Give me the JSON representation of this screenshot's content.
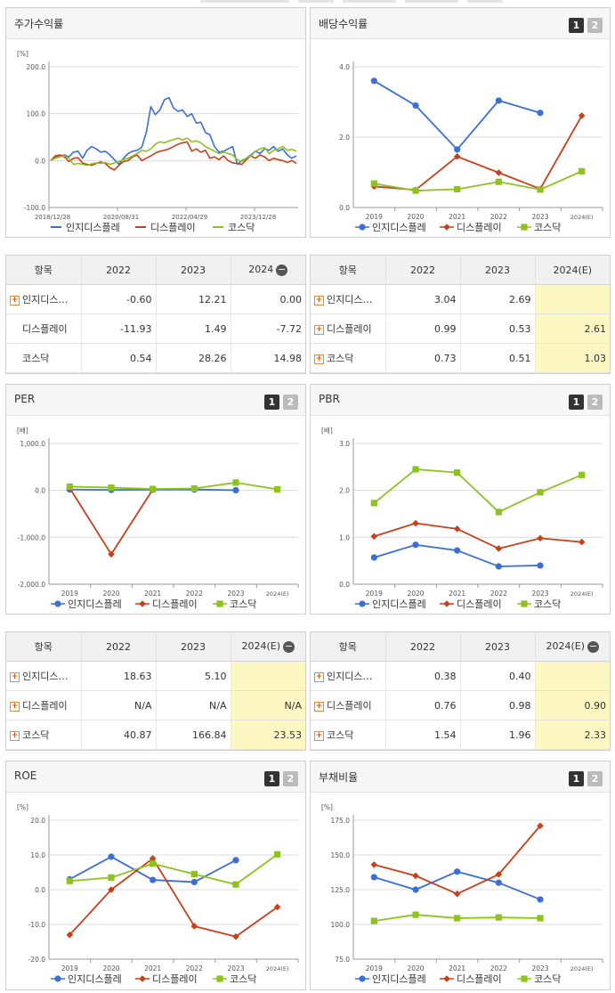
{
  "colors": {
    "blue": "#3a6fd8",
    "red": "#c8401a",
    "green": "#8dc21f",
    "grid": "#dcdcdc",
    "axis": "#999999"
  },
  "legend_names": [
    "인지디스플레",
    "디스플레이",
    "코스닥"
  ],
  "panels": [
    {
      "key": "stock",
      "title": "주가수익률",
      "buttons": [],
      "chart_data": {
        "type": "line",
        "unit": "[%]",
        "ylim": [
          -100,
          200
        ],
        "yticks": [
          "200.0",
          "100.0",
          "0.0",
          "-100.0"
        ],
        "ytick_values": [
          200,
          100,
          0,
          -100
        ],
        "x_tick_labels": [
          "2018/12/28",
          "2020/08/31",
          "2022/04/29",
          "2023/12/28"
        ],
        "x_tick_positions": [
          0,
          0.275,
          0.55,
          0.825
        ],
        "series": [
          {
            "name": "인지디스플레",
            "color": "#3a6fd8",
            "values": [
              0,
              8,
              10,
              12,
              8,
              18,
              20,
              5,
              22,
              30,
              25,
              18,
              20,
              12,
              2,
              -8,
              5,
              15,
              20,
              22,
              28,
              60,
              115,
              98,
              108,
              130,
              134,
              112,
              105,
              108,
              94,
              100,
              80,
              82,
              60,
              55,
              30,
              18,
              20,
              25,
              30,
              -8,
              0,
              5,
              12,
              20,
              15,
              25,
              22,
              30,
              20,
              25,
              12,
              5,
              10
            ]
          },
          {
            "name": "디스플레이",
            "color": "#c8401a",
            "values": [
              0,
              10,
              12,
              8,
              -2,
              5,
              6,
              -5,
              -8,
              -10,
              -6,
              -3,
              -6,
              -15,
              -20,
              -10,
              -2,
              0,
              8,
              12,
              0,
              5,
              10,
              16,
              20,
              22,
              25,
              30,
              35,
              38,
              40,
              20,
              25,
              18,
              22,
              5,
              8,
              2,
              10,
              0,
              -5,
              -6,
              -8,
              2,
              10,
              5,
              12,
              8,
              0,
              5,
              2,
              0,
              -4,
              0,
              -6
            ]
          },
          {
            "name": "코스닥",
            "color": "#8dc21f",
            "values": [
              0,
              5,
              8,
              10,
              5,
              -8,
              -6,
              -8,
              -10,
              -7,
              -5,
              -6,
              -4,
              -8,
              -5,
              -2,
              2,
              5,
              10,
              15,
              22,
              20,
              25,
              35,
              40,
              38,
              42,
              45,
              48,
              44,
              48,
              40,
              42,
              38,
              30,
              25,
              20,
              15,
              18,
              15,
              12,
              2,
              -2,
              5,
              10,
              20,
              25,
              28,
              15,
              22,
              25,
              30,
              22,
              24,
              20
            ]
          }
        ]
      },
      "table": {
        "headers": [
          "항목",
          "2022",
          "2023",
          "2024"
        ],
        "last_header_minus": true,
        "rows": [
          {
            "name": "인지디스…",
            "plus": true,
            "cells": [
              "-0.60",
              "12.21",
              "0.00"
            ]
          },
          {
            "name": "디스플레이",
            "plus": false,
            "cells": [
              "-11.93",
              "1.49",
              "-7.72"
            ]
          },
          {
            "name": "코스닥",
            "plus": false,
            "cells": [
              "0.54",
              "28.26",
              "14.98"
            ]
          }
        ],
        "highlight_last": false
      }
    },
    {
      "key": "dividend",
      "title": "배당수익률",
      "buttons": [
        "1",
        "2"
      ],
      "chart_data": {
        "type": "line",
        "unit": "",
        "ylim": [
          0,
          4
        ],
        "yticks": [
          "4.0",
          "2.0",
          "0.0"
        ],
        "ytick_values": [
          4,
          2,
          0
        ],
        "categories": [
          "2019",
          "2020",
          "2021",
          "2022",
          "2023",
          "2024(E)"
        ],
        "series": [
          {
            "name": "인지디스플레",
            "color": "#3a6fd8",
            "marker": "circle",
            "values": [
              3.6,
              2.9,
              1.65,
              3.04,
              2.69,
              null
            ]
          },
          {
            "name": "디스플레이",
            "color": "#c8401a",
            "marker": "diamond",
            "values": [
              0.6,
              0.5,
              1.45,
              0.99,
              0.53,
              2.61
            ]
          },
          {
            "name": "코스닥",
            "color": "#8dc21f",
            "marker": "square",
            "values": [
              0.68,
              0.48,
              0.52,
              0.73,
              0.51,
              1.03
            ]
          }
        ]
      },
      "table": {
        "headers": [
          "항목",
          "2022",
          "2023",
          "2024(E)"
        ],
        "last_header_minus": false,
        "rows": [
          {
            "name": "인지디스…",
            "plus": true,
            "cells": [
              "3.04",
              "2.69",
              ""
            ]
          },
          {
            "name": "디스플레이",
            "plus": true,
            "cells": [
              "0.99",
              "0.53",
              "2.61"
            ]
          },
          {
            "name": "코스닥",
            "plus": true,
            "cells": [
              "0.73",
              "0.51",
              "1.03"
            ]
          }
        ],
        "highlight_last": true
      }
    },
    {
      "key": "per",
      "title": "PER",
      "buttons": [
        "1",
        "2"
      ],
      "chart_data": {
        "type": "line",
        "unit": "[배]",
        "ylim": [
          -2000,
          1000
        ],
        "yticks": [
          "1,000.0",
          "0.0",
          "-1,000.0",
          "-2,000.0"
        ],
        "ytick_values": [
          1000,
          0,
          -1000,
          -2000
        ],
        "categories": [
          "2019",
          "2020",
          "2021",
          "2022",
          "2023",
          "2024(E)"
        ],
        "series": [
          {
            "name": "인지디스플레",
            "color": "#3a6fd8",
            "marker": "circle",
            "values": [
              20,
              10,
              15,
              18.63,
              5.1,
              null
            ]
          },
          {
            "name": "디스플레이",
            "color": "#c8401a",
            "marker": "diamond",
            "values": [
              50,
              -1360,
              20,
              null,
              null,
              null
            ]
          },
          {
            "name": "코스닥",
            "color": "#8dc21f",
            "marker": "square",
            "values": [
              80,
              60,
              30,
              40.87,
              166.84,
              23.53
            ]
          }
        ]
      },
      "table": {
        "headers": [
          "항목",
          "2022",
          "2023",
          "2024(E)"
        ],
        "last_header_minus": true,
        "rows": [
          {
            "name": "인지디스…",
            "plus": true,
            "cells": [
              "18.63",
              "5.10",
              ""
            ]
          },
          {
            "name": "디스플레이",
            "plus": true,
            "cells": [
              "N/A",
              "N/A",
              "N/A"
            ]
          },
          {
            "name": "코스닥",
            "plus": true,
            "cells": [
              "40.87",
              "166.84",
              "23.53"
            ]
          }
        ],
        "highlight_last": true
      }
    },
    {
      "key": "pbr",
      "title": "PBR",
      "buttons": [
        "1",
        "2"
      ],
      "chart_data": {
        "type": "line",
        "unit": "[배]",
        "ylim": [
          0,
          3
        ],
        "yticks": [
          "3.0",
          "2.0",
          "1.0",
          "0.0"
        ],
        "ytick_values": [
          3,
          2,
          1,
          0
        ],
        "categories": [
          "2019",
          "2020",
          "2021",
          "2022",
          "2023",
          "2024(E)"
        ],
        "series": [
          {
            "name": "인지디스플레",
            "color": "#3a6fd8",
            "marker": "circle",
            "values": [
              0.57,
              0.84,
              0.72,
              0.38,
              0.4,
              null
            ]
          },
          {
            "name": "디스플레이",
            "color": "#c8401a",
            "marker": "diamond",
            "values": [
              1.02,
              1.3,
              1.18,
              0.76,
              0.98,
              0.9
            ]
          },
          {
            "name": "코스닥",
            "color": "#8dc21f",
            "marker": "square",
            "values": [
              1.73,
              2.45,
              2.38,
              1.54,
              1.96,
              2.33
            ]
          }
        ]
      },
      "table": {
        "headers": [
          "항목",
          "2022",
          "2023",
          "2024(E)"
        ],
        "last_header_minus": true,
        "rows": [
          {
            "name": "인지디스…",
            "plus": true,
            "cells": [
              "0.38",
              "0.40",
              ""
            ]
          },
          {
            "name": "디스플레이",
            "plus": true,
            "cells": [
              "0.76",
              "0.98",
              "0.90"
            ]
          },
          {
            "name": "코스닥",
            "plus": true,
            "cells": [
              "1.54",
              "1.96",
              "2.33"
            ]
          }
        ],
        "highlight_last": true
      }
    },
    {
      "key": "roe",
      "title": "ROE",
      "buttons": [
        "1",
        "2"
      ],
      "chart_data": {
        "type": "line",
        "unit": "[%]",
        "ylim": [
          -20,
          20
        ],
        "yticks": [
          "20.0",
          "10.0",
          "0.0",
          "-10.0",
          "-20.0"
        ],
        "ytick_values": [
          20,
          10,
          0,
          -10,
          -20
        ],
        "categories": [
          "2019",
          "2020",
          "2021",
          "2022",
          "2023",
          "2024(E)"
        ],
        "series": [
          {
            "name": "인지디스플레",
            "color": "#3a6fd8",
            "marker": "circle",
            "values": [
              3,
              9.5,
              2.8,
              2.2,
              8.5,
              null
            ]
          },
          {
            "name": "디스플레이",
            "color": "#c8401a",
            "marker": "diamond",
            "values": [
              -13,
              0,
              9,
              -10.5,
              -13.5,
              -5
            ]
          },
          {
            "name": "코스닥",
            "color": "#8dc21f",
            "marker": "square",
            "values": [
              2.5,
              3.5,
              7.5,
              4.5,
              1.5,
              10.2
            ]
          }
        ]
      },
      "table": null
    },
    {
      "key": "debt",
      "title": "부채비율",
      "buttons": [
        "1",
        "2"
      ],
      "chart_data": {
        "type": "line",
        "unit": "[%]",
        "ylim": [
          75,
          175
        ],
        "yticks": [
          "175.0",
          "150.0",
          "125.0",
          "100.0",
          "75.0"
        ],
        "ytick_values": [
          175,
          150,
          125,
          100,
          75
        ],
        "categories": [
          "2019",
          "2020",
          "2021",
          "2022",
          "2023",
          "2024(E)"
        ],
        "series": [
          {
            "name": "인지디스플레",
            "color": "#3a6fd8",
            "marker": "circle",
            "values": [
              134,
              125,
              138,
              130,
              118,
              null
            ]
          },
          {
            "name": "디스플레이",
            "color": "#c8401a",
            "marker": "diamond",
            "values": [
              143,
              135,
              122,
              136,
              171,
              null
            ]
          },
          {
            "name": "코스닥",
            "color": "#8dc21f",
            "marker": "square",
            "values": [
              102.5,
              107,
              104.5,
              105,
              104.5,
              null
            ]
          }
        ]
      },
      "table": null
    }
  ]
}
